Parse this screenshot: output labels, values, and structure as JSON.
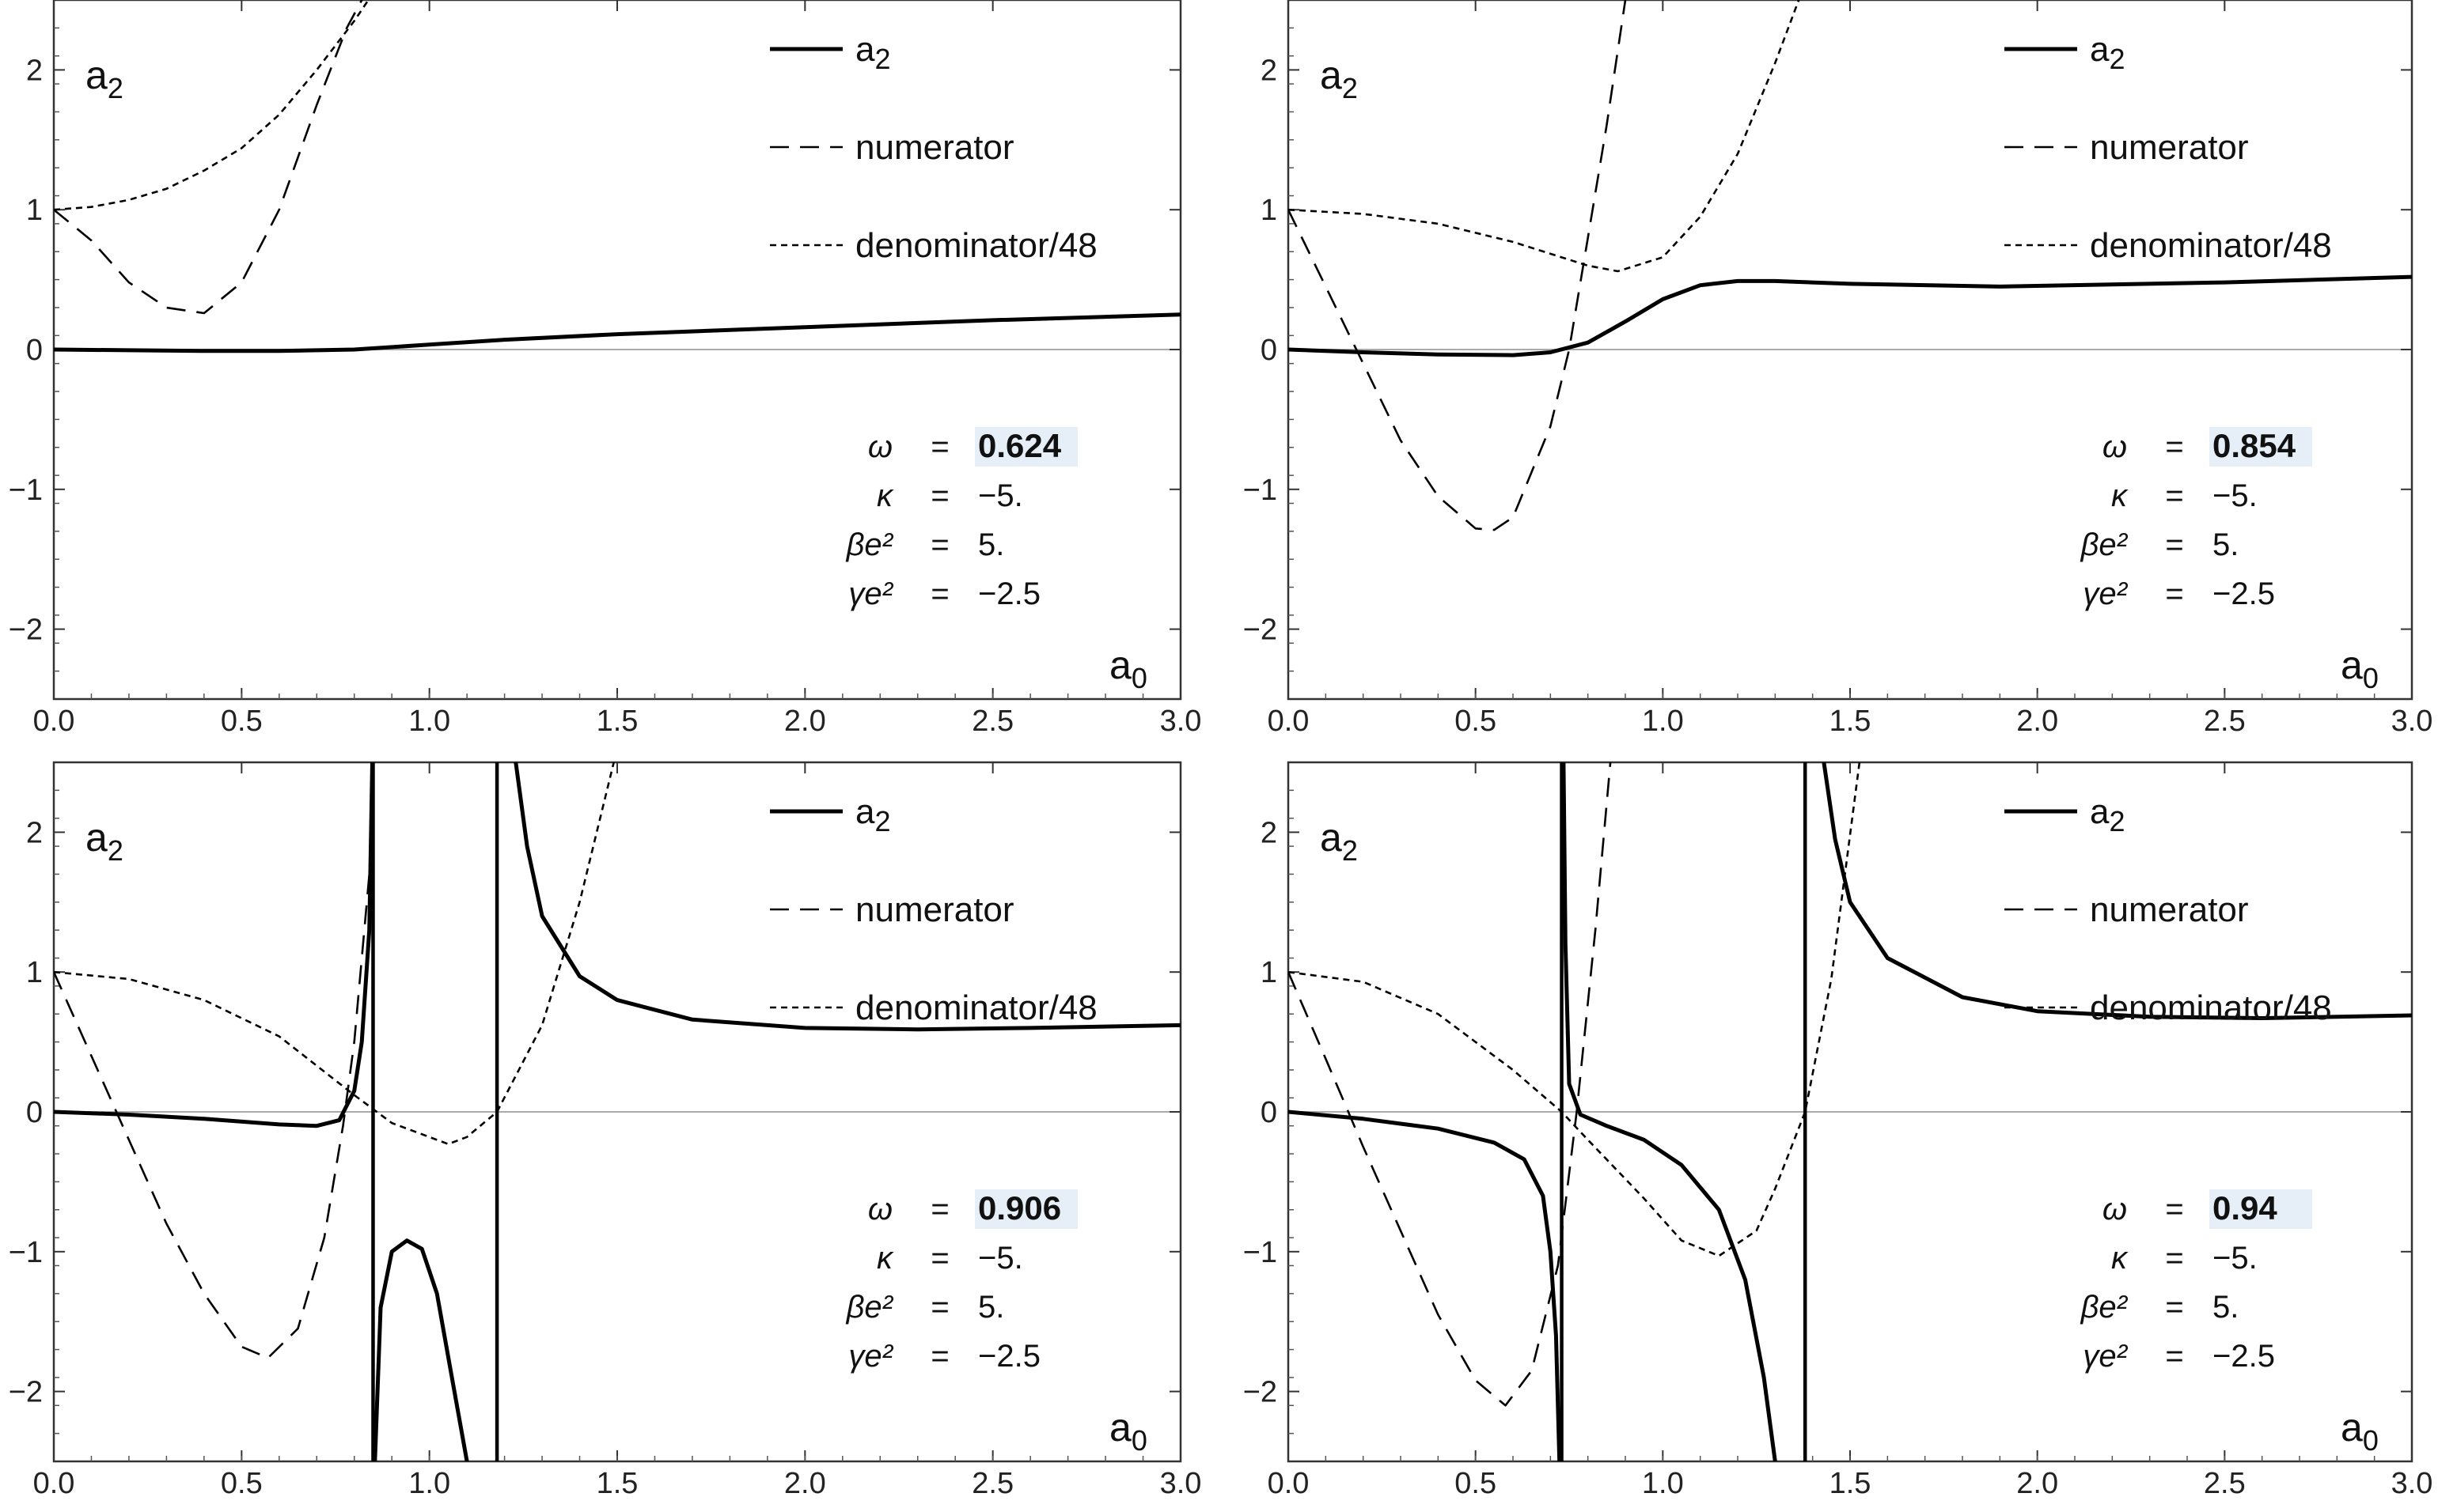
{
  "chart_data": [
    {
      "type": "line",
      "xlabel": "a0",
      "ylabel": "a2",
      "xlim": [
        0,
        3
      ],
      "ylim": [
        -2.5,
        2.5
      ],
      "x_ticks": [
        "0.0",
        "0.5",
        "1.0",
        "1.5",
        "2.0",
        "2.5",
        "3.0"
      ],
      "y_ticks": [
        "−2",
        "−1",
        "0",
        "1",
        "2"
      ],
      "legend": [
        "a2",
        "numerator",
        "denominator/48"
      ],
      "legend_position": "top-right",
      "parameters": [
        {
          "symbol": "ω",
          "value": "0.624",
          "highlight": true
        },
        {
          "symbol": "κ",
          "value": "−5.",
          "highlight": false
        },
        {
          "symbol": "βe²",
          "value": "5.",
          "highlight": false
        },
        {
          "symbol": "γe²",
          "value": "−2.5",
          "highlight": false
        }
      ],
      "series": [
        {
          "name": "a2",
          "style": "solid",
          "x": [
            0,
            0.2,
            0.4,
            0.6,
            0.8,
            1.0,
            1.2,
            1.5,
            2.0,
            2.5,
            3.0
          ],
          "y": [
            0.0,
            -0.005,
            -0.01,
            -0.01,
            0.0,
            0.035,
            0.07,
            0.11,
            0.16,
            0.21,
            0.25
          ]
        },
        {
          "name": "numerator",
          "style": "dashed",
          "x": [
            0,
            0.1,
            0.2,
            0.3,
            0.4,
            0.5,
            0.6,
            0.7,
            0.78,
            0.83
          ],
          "y": [
            1.0,
            0.78,
            0.48,
            0.3,
            0.26,
            0.48,
            1.0,
            1.75,
            2.3,
            2.55
          ]
        },
        {
          "name": "denominator/48",
          "style": "dotted",
          "x": [
            0,
            0.1,
            0.2,
            0.3,
            0.4,
            0.5,
            0.6,
            0.7,
            0.8,
            0.85
          ],
          "y": [
            1.0,
            1.02,
            1.07,
            1.15,
            1.28,
            1.44,
            1.68,
            2.0,
            2.35,
            2.55
          ]
        }
      ]
    },
    {
      "type": "line",
      "xlabel": "a0",
      "ylabel": "a2",
      "xlim": [
        0,
        3
      ],
      "ylim": [
        -2.5,
        2.5
      ],
      "x_ticks": [
        "0.0",
        "0.5",
        "1.0",
        "1.5",
        "2.0",
        "2.5",
        "3.0"
      ],
      "y_ticks": [
        "−2",
        "−1",
        "0",
        "1",
        "2"
      ],
      "legend": [
        "a2",
        "numerator",
        "denominator/48"
      ],
      "legend_position": "top-right",
      "parameters": [
        {
          "symbol": "ω",
          "value": "0.854",
          "highlight": true
        },
        {
          "symbol": "κ",
          "value": "−5.",
          "highlight": false
        },
        {
          "symbol": "βe²",
          "value": "5.",
          "highlight": false
        },
        {
          "symbol": "γe²",
          "value": "−2.5",
          "highlight": false
        }
      ],
      "series": [
        {
          "name": "a2",
          "style": "solid",
          "x": [
            0,
            0.2,
            0.4,
            0.6,
            0.7,
            0.8,
            0.9,
            1.0,
            1.1,
            1.2,
            1.3,
            1.5,
            1.9,
            2.5,
            3.0
          ],
          "y": [
            0.0,
            -0.02,
            -0.035,
            -0.04,
            -0.02,
            0.05,
            0.2,
            0.36,
            0.46,
            0.49,
            0.49,
            0.47,
            0.45,
            0.48,
            0.52
          ]
        },
        {
          "name": "numerator",
          "style": "dashed",
          "x": [
            0,
            0.1,
            0.2,
            0.3,
            0.4,
            0.5,
            0.55,
            0.6,
            0.7,
            0.75,
            0.8,
            0.85,
            0.9
          ],
          "y": [
            1.0,
            0.45,
            -0.1,
            -0.65,
            -1.05,
            -1.28,
            -1.29,
            -1.2,
            -0.55,
            0.0,
            0.8,
            1.6,
            2.5
          ]
        },
        {
          "name": "denominator/48",
          "style": "dotted",
          "x": [
            0,
            0.2,
            0.4,
            0.6,
            0.8,
            0.88,
            1.0,
            1.1,
            1.2,
            1.3,
            1.37
          ],
          "y": [
            1.0,
            0.97,
            0.9,
            0.77,
            0.6,
            0.56,
            0.66,
            0.95,
            1.4,
            2.05,
            2.55
          ]
        }
      ]
    },
    {
      "type": "line",
      "xlabel": "a0",
      "ylabel": "a2",
      "xlim": [
        0,
        3
      ],
      "ylim": [
        -2.5,
        2.5
      ],
      "x_ticks": [
        "0.0",
        "0.5",
        "1.0",
        "1.5",
        "2.0",
        "2.5",
        "3.0"
      ],
      "y_ticks": [
        "−2",
        "−1",
        "0",
        "1",
        "2"
      ],
      "legend": [
        "a2",
        "numerator",
        "denominator/48"
      ],
      "legend_position": "top-right",
      "parameters": [
        {
          "symbol": "ω",
          "value": "0.906",
          "highlight": true
        },
        {
          "symbol": "κ",
          "value": "−5.",
          "highlight": false
        },
        {
          "symbol": "βe²",
          "value": "5.",
          "highlight": false
        },
        {
          "symbol": "γe²",
          "value": "−2.5",
          "highlight": false
        }
      ],
      "asymptotes_x": [
        0.85,
        1.18
      ],
      "series": [
        {
          "name": "a2",
          "style": "solid",
          "segments": [
            {
              "x": [
                0,
                0.2,
                0.4,
                0.6,
                0.7,
                0.76,
                0.8,
                0.82,
                0.84,
                0.848
              ],
              "y": [
                0.0,
                -0.02,
                -0.05,
                -0.09,
                -0.1,
                -0.06,
                0.15,
                0.5,
                1.3,
                2.5
              ]
            },
            {
              "x": [
                0.855,
                0.87,
                0.9,
                0.94,
                0.98,
                1.02,
                1.06,
                1.1
              ],
              "y": [
                -2.5,
                -1.4,
                -1.0,
                -0.92,
                -0.98,
                -1.3,
                -1.9,
                -2.5
              ]
            },
            {
              "x": [
                1.23,
                1.26,
                1.3,
                1.4,
                1.5,
                1.7,
                2.0,
                2.3,
                2.6,
                3.0
              ],
              "y": [
                2.5,
                1.9,
                1.4,
                0.97,
                0.8,
                0.66,
                0.6,
                0.59,
                0.6,
                0.62
              ]
            }
          ]
        },
        {
          "name": "numerator",
          "style": "dashed",
          "x": [
            0,
            0.1,
            0.2,
            0.3,
            0.4,
            0.5,
            0.57,
            0.65,
            0.72,
            0.77,
            0.8,
            0.85
          ],
          "y": [
            1.0,
            0.4,
            -0.2,
            -0.8,
            -1.3,
            -1.68,
            -1.76,
            -1.55,
            -0.9,
            -0.1,
            0.5,
            2.0
          ]
        },
        {
          "name": "denominator/48",
          "style": "dotted",
          "x": [
            0,
            0.2,
            0.4,
            0.6,
            0.8,
            0.9,
            1.05,
            1.1,
            1.18,
            1.3,
            1.4,
            1.5
          ],
          "y": [
            1.0,
            0.95,
            0.8,
            0.54,
            0.12,
            -0.08,
            -0.23,
            -0.18,
            0.0,
            0.62,
            1.5,
            2.6
          ]
        }
      ]
    },
    {
      "type": "line",
      "xlabel": "a0",
      "ylabel": "a2",
      "xlim": [
        0,
        3
      ],
      "ylim": [
        -2.5,
        2.5
      ],
      "x_ticks": [
        "0.0",
        "0.5",
        "1.0",
        "1.5",
        "2.0",
        "2.5",
        "3.0"
      ],
      "y_ticks": [
        "−2",
        "−1",
        "0",
        "1",
        "2"
      ],
      "legend": [
        "a2",
        "numerator",
        "denominator/48"
      ],
      "legend_position": "top-right",
      "parameters": [
        {
          "symbol": "ω",
          "value": "0.94",
          "highlight": true
        },
        {
          "symbol": "κ",
          "value": "−5.",
          "highlight": false
        },
        {
          "symbol": "βe²",
          "value": "5.",
          "highlight": false
        },
        {
          "symbol": "γe²",
          "value": "−2.5",
          "highlight": false
        }
      ],
      "asymptotes_x": [
        0.73,
        1.38
      ],
      "series": [
        {
          "name": "a2",
          "style": "solid",
          "segments": [
            {
              "x": [
                0,
                0.2,
                0.4,
                0.55,
                0.63,
                0.68,
                0.7,
                0.715,
                0.724
              ],
              "y": [
                0.0,
                -0.05,
                -0.12,
                -0.22,
                -0.34,
                -0.6,
                -1.0,
                -1.6,
                -2.5
              ]
            },
            {
              "x": [
                0.735,
                0.74,
                0.75,
                0.78,
                0.85,
                0.95,
                1.05,
                1.15,
                1.22,
                1.27,
                1.3
              ],
              "y": [
                2.5,
                1.2,
                0.2,
                -0.02,
                -0.1,
                -0.2,
                -0.38,
                -0.7,
                -1.2,
                -1.9,
                -2.5
              ]
            },
            {
              "x": [
                1.43,
                1.46,
                1.5,
                1.6,
                1.8,
                2.0,
                2.3,
                2.6,
                3.0
              ],
              "y": [
                2.5,
                1.95,
                1.5,
                1.1,
                0.82,
                0.72,
                0.68,
                0.67,
                0.69
              ]
            }
          ]
        },
        {
          "name": "numerator",
          "style": "dashed",
          "x": [
            0,
            0.1,
            0.2,
            0.3,
            0.4,
            0.5,
            0.58,
            0.65,
            0.72,
            0.77,
            0.82,
            0.86
          ],
          "y": [
            1.0,
            0.38,
            -0.25,
            -0.85,
            -1.45,
            -1.92,
            -2.1,
            -1.85,
            -1.1,
            0.0,
            1.3,
            2.5
          ]
        },
        {
          "name": "denominator/48",
          "style": "dotted",
          "x": [
            0,
            0.2,
            0.4,
            0.6,
            0.73,
            0.8,
            0.95,
            1.05,
            1.15,
            1.25,
            1.3,
            1.38,
            1.45,
            1.53
          ],
          "y": [
            1.0,
            0.93,
            0.7,
            0.3,
            0.0,
            -0.2,
            -0.62,
            -0.92,
            -1.03,
            -0.85,
            -0.55,
            0.0,
            0.95,
            2.6
          ]
        }
      ]
    }
  ]
}
